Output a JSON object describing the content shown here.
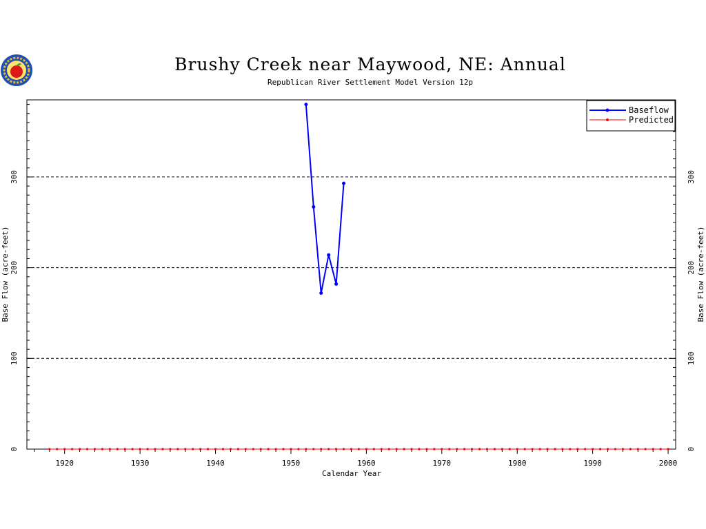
{
  "chart_data": {
    "type": "line",
    "title": "Brushy Creek near Maywood, NE: Annual",
    "subtitle": "Republican River Settlement Model Version 12p",
    "xlabel": "Calendar Year",
    "ylabel": "Base Flow (acre-feet)",
    "xlim": [
      1915,
      2001
    ],
    "ylim": [
      0,
      385
    ],
    "x_ticks": [
      "1920",
      "1930",
      "1940",
      "1950",
      "1960",
      "1970",
      "1980",
      "1990",
      "2000"
    ],
    "y_ticks": [
      "0",
      "100",
      "200",
      "300"
    ],
    "grid": "horizontal dashed at 100, 200, 300",
    "legend_position": "top-right",
    "series": [
      {
        "name": "Baseflow",
        "color": "#0000ff",
        "x": [
          1952,
          1953,
          1954,
          1955,
          1956,
          1957
        ],
        "y": [
          380,
          267,
          172,
          214,
          182,
          293
        ]
      },
      {
        "name": "Predicted",
        "color": "#ff0000",
        "x_start": 1918,
        "x_end": 2000,
        "value": 0
      }
    ]
  },
  "logo": {
    "name": "apple-logo",
    "colors": [
      "#1f4fb0",
      "#e8b830",
      "#dd1a1a",
      "#3a9a2a"
    ]
  }
}
